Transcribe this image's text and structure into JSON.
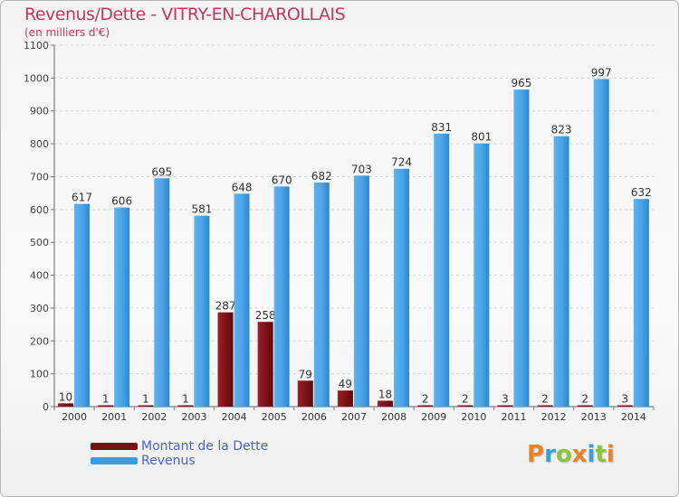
{
  "header": {
    "title": "Revenus/Dette - VITRY-EN-CHAROLLAIS",
    "subtitle": "(en milliers d'€)"
  },
  "chart_data": {
    "type": "bar",
    "categories": [
      "2000",
      "2001",
      "2002",
      "2003",
      "2004",
      "2005",
      "2006",
      "2007",
      "2008",
      "2009",
      "2010",
      "2011",
      "2012",
      "2013",
      "2014"
    ],
    "series": [
      {
        "name": "Montant de la Dette",
        "color": "#7a0f14",
        "values": [
          10,
          1,
          1,
          1,
          287,
          258,
          79,
          49,
          18,
          2,
          2,
          3,
          2,
          2,
          3
        ]
      },
      {
        "name": "Revenus",
        "color": "#3d9be0",
        "values": [
          617,
          606,
          695,
          581,
          648,
          670,
          682,
          703,
          724,
          831,
          801,
          965,
          823,
          997,
          632
        ]
      }
    ],
    "ylim": [
      0,
      1100
    ],
    "yticks": [
      0,
      100,
      200,
      300,
      400,
      500,
      600,
      700,
      800,
      900,
      1000,
      1100
    ],
    "grid": true,
    "legend_position": "bottom-left"
  },
  "logo": {
    "letters": [
      "P",
      "r",
      "o",
      "x",
      "i",
      "t",
      "i"
    ]
  }
}
